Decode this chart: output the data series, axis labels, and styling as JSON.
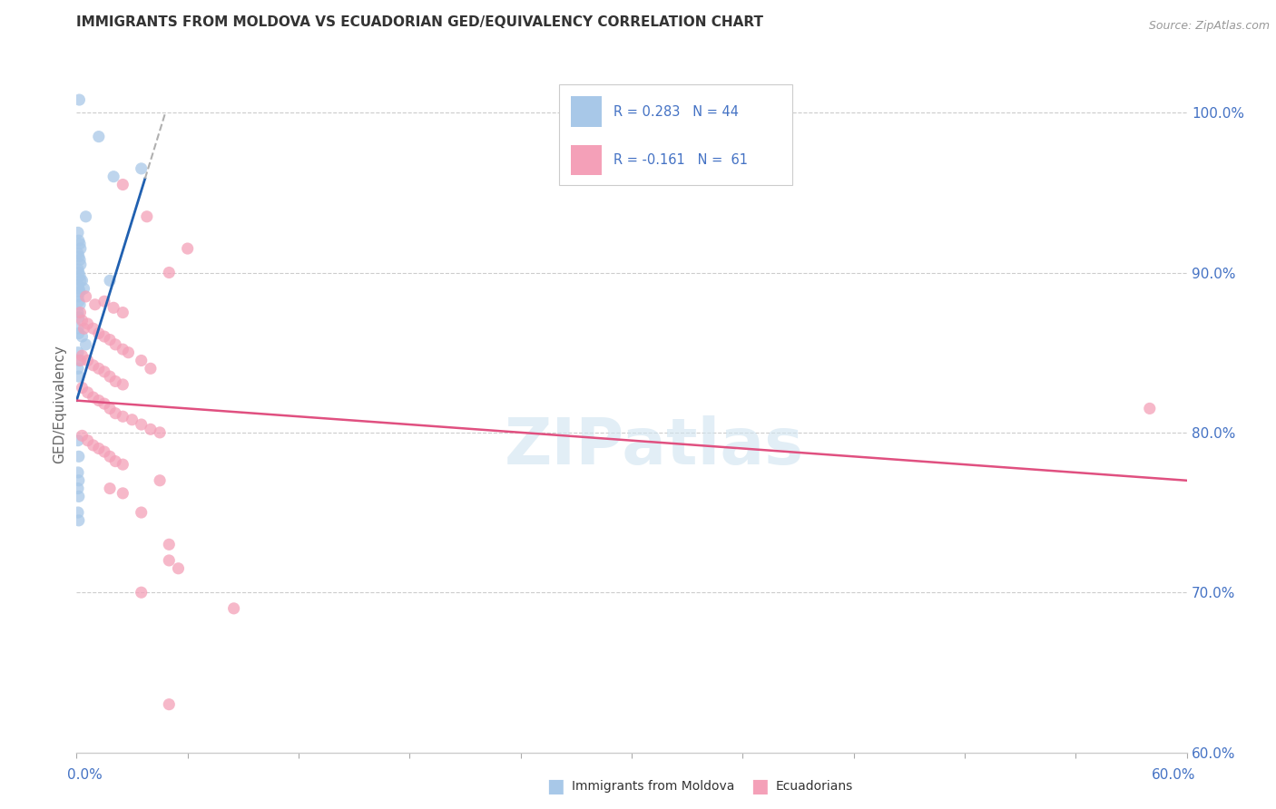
{
  "title": "IMMIGRANTS FROM MOLDOVA VS ECUADORIAN GED/EQUIVALENCY CORRELATION CHART",
  "source": "Source: ZipAtlas.com",
  "ylabel": "GED/Equivalency",
  "right_yticks": [
    60.0,
    70.0,
    80.0,
    90.0,
    100.0
  ],
  "xlim": [
    0.0,
    60.0
  ],
  "ylim": [
    60.0,
    103.5
  ],
  "blue_color": "#a8c8e8",
  "pink_color": "#f4a0b8",
  "blue_line_color": "#2060b0",
  "pink_line_color": "#e05080",
  "dashed_line_color": "#b0b0b0",
  "axis_label_color": "#4472c4",
  "watermark": "ZIPatlas",
  "blue_dots": [
    [
      0.15,
      100.8
    ],
    [
      1.2,
      98.5
    ],
    [
      3.5,
      96.5
    ],
    [
      2.0,
      96.0
    ],
    [
      0.5,
      93.5
    ],
    [
      0.08,
      92.5
    ],
    [
      0.12,
      92.0
    ],
    [
      0.18,
      91.8
    ],
    [
      0.22,
      91.5
    ],
    [
      0.08,
      91.2
    ],
    [
      0.12,
      91.0
    ],
    [
      0.18,
      90.8
    ],
    [
      0.22,
      90.5
    ],
    [
      0.08,
      90.2
    ],
    [
      0.12,
      90.0
    ],
    [
      0.18,
      89.8
    ],
    [
      0.22,
      89.5
    ],
    [
      0.08,
      89.2
    ],
    [
      0.12,
      89.0
    ],
    [
      0.18,
      88.8
    ],
    [
      0.3,
      89.5
    ],
    [
      0.4,
      89.0
    ],
    [
      0.08,
      88.5
    ],
    [
      0.12,
      88.2
    ],
    [
      0.18,
      88.0
    ],
    [
      0.08,
      87.5
    ],
    [
      0.12,
      87.2
    ],
    [
      1.8,
      89.5
    ],
    [
      0.08,
      86.5
    ],
    [
      0.12,
      86.2
    ],
    [
      0.3,
      86.0
    ],
    [
      0.5,
      85.5
    ],
    [
      0.08,
      85.0
    ],
    [
      0.12,
      84.5
    ],
    [
      0.08,
      84.0
    ],
    [
      0.12,
      83.5
    ],
    [
      0.08,
      79.5
    ],
    [
      0.12,
      78.5
    ],
    [
      0.08,
      77.5
    ],
    [
      0.12,
      77.0
    ],
    [
      0.08,
      76.5
    ],
    [
      0.12,
      76.0
    ],
    [
      0.08,
      75.0
    ],
    [
      0.12,
      74.5
    ]
  ],
  "pink_dots": [
    [
      2.5,
      95.5
    ],
    [
      3.8,
      93.5
    ],
    [
      6.0,
      91.5
    ],
    [
      5.0,
      90.0
    ],
    [
      0.5,
      88.5
    ],
    [
      1.0,
      88.0
    ],
    [
      1.5,
      88.2
    ],
    [
      2.0,
      87.8
    ],
    [
      2.5,
      87.5
    ],
    [
      0.3,
      87.0
    ],
    [
      0.6,
      86.8
    ],
    [
      0.9,
      86.5
    ],
    [
      1.2,
      86.2
    ],
    [
      1.5,
      86.0
    ],
    [
      1.8,
      85.8
    ],
    [
      2.1,
      85.5
    ],
    [
      2.5,
      85.2
    ],
    [
      2.8,
      85.0
    ],
    [
      0.3,
      84.8
    ],
    [
      0.6,
      84.5
    ],
    [
      0.9,
      84.2
    ],
    [
      1.2,
      84.0
    ],
    [
      1.5,
      83.8
    ],
    [
      1.8,
      83.5
    ],
    [
      2.1,
      83.2
    ],
    [
      2.5,
      83.0
    ],
    [
      3.5,
      84.5
    ],
    [
      4.0,
      84.0
    ],
    [
      0.3,
      82.8
    ],
    [
      0.6,
      82.5
    ],
    [
      0.9,
      82.2
    ],
    [
      1.2,
      82.0
    ],
    [
      1.5,
      81.8
    ],
    [
      1.8,
      81.5
    ],
    [
      2.1,
      81.2
    ],
    [
      2.5,
      81.0
    ],
    [
      3.0,
      80.8
    ],
    [
      3.5,
      80.5
    ],
    [
      4.0,
      80.2
    ],
    [
      4.5,
      80.0
    ],
    [
      0.3,
      79.8
    ],
    [
      0.6,
      79.5
    ],
    [
      0.9,
      79.2
    ],
    [
      1.2,
      79.0
    ],
    [
      1.5,
      78.8
    ],
    [
      1.8,
      78.5
    ],
    [
      2.1,
      78.2
    ],
    [
      2.5,
      78.0
    ],
    [
      1.8,
      76.5
    ],
    [
      2.5,
      76.2
    ],
    [
      4.5,
      77.0
    ],
    [
      3.5,
      75.0
    ],
    [
      3.5,
      70.0
    ],
    [
      8.5,
      69.0
    ],
    [
      5.0,
      73.0
    ],
    [
      5.0,
      72.0
    ],
    [
      5.0,
      63.0
    ],
    [
      5.5,
      71.5
    ],
    [
      58.0,
      81.5
    ],
    [
      0.2,
      87.5
    ],
    [
      0.4,
      86.5
    ],
    [
      0.2,
      84.5
    ]
  ]
}
